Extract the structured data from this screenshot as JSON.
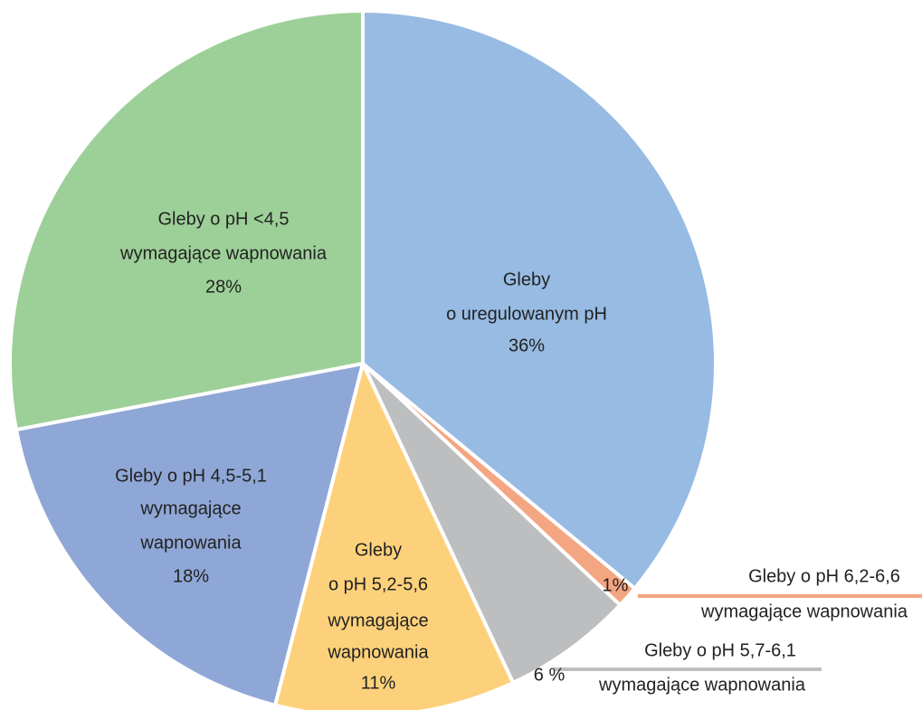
{
  "chart_data": {
    "type": "pie",
    "categories": [
      [
        "Gleby",
        "o uregulowanym pH"
      ],
      [
        "Gleby o pH 6,2-6,6",
        "wymagające wapnowania"
      ],
      [
        "Gleby o pH 5,7-6,1",
        "wymagające wapnowania"
      ],
      [
        "Gleby",
        "o pH 5,2-5,6",
        "wymagające",
        "wapnowania"
      ],
      [
        "Gleby o pH 4,5-5,1",
        "wymagające",
        "wapnowania"
      ],
      [
        "Gleby o pH <4,5",
        "wymagające wapnowania"
      ]
    ],
    "values": [
      36,
      1,
      6,
      11,
      18,
      28
    ],
    "value_labels": [
      "36%",
      "1%",
      "6 %",
      "11%",
      "18%",
      "28%"
    ],
    "colors": [
      "#97bbe3",
      "#f4a582",
      "#bdbebf",
      "#fdd17b",
      "#8fa7d6",
      "#9dd098"
    ]
  }
}
